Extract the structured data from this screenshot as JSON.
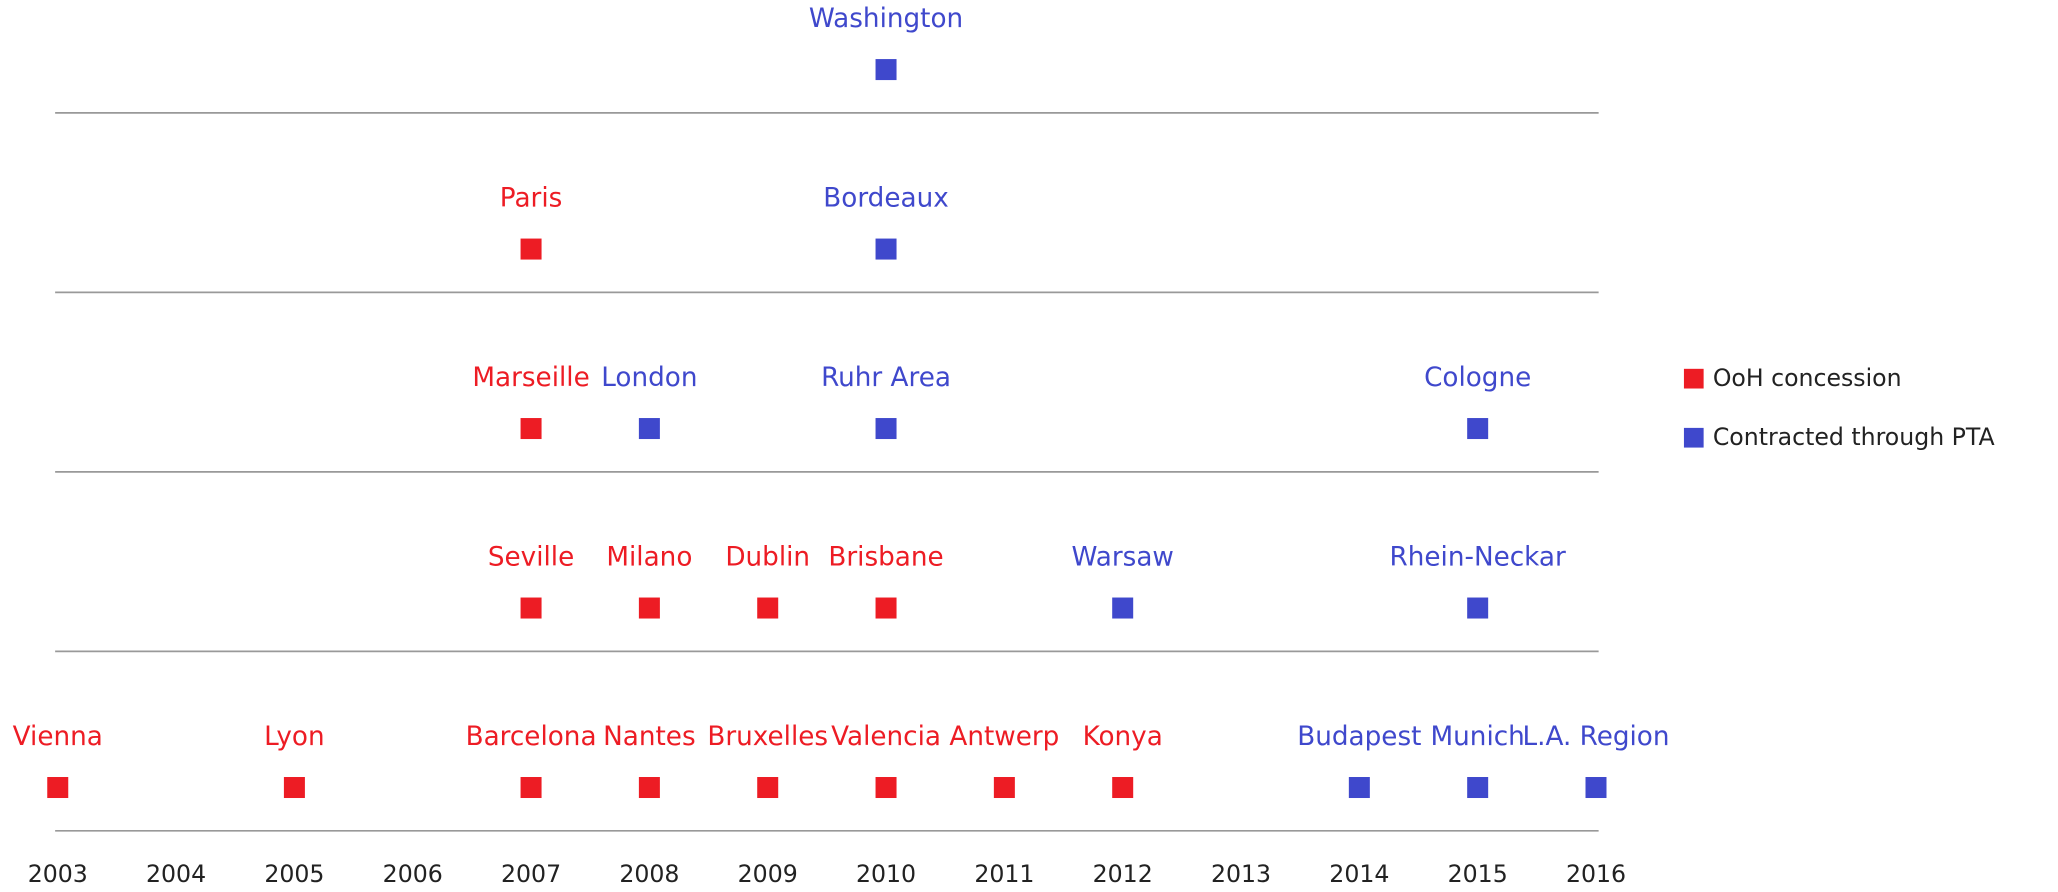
{
  "chart_data": {
    "type": "timeline",
    "xlim": [
      2003,
      2016
    ],
    "xticks": [
      2003,
      2004,
      2005,
      2006,
      2007,
      2008,
      2009,
      2010,
      2011,
      2012,
      2013,
      2014,
      2015,
      2016
    ],
    "legend": "right",
    "series": [
      {
        "name": "OoH concession",
        "color": "#ed1c24",
        "labels": [
          "Vienna",
          "Lyon",
          "Barcelona",
          "Nantes",
          "Bruxelles",
          "Valencia",
          "Antwerp",
          "Konya",
          "Seville",
          "Milano",
          "Dublin",
          "Brisbane",
          "Marseille",
          "Paris"
        ],
        "x": [
          2003,
          2005,
          2007,
          2008,
          2009,
          2010,
          2011,
          2012,
          2007,
          2008,
          2009,
          2010,
          2007,
          2007
        ]
      },
      {
        "name": "Contracted through PTA",
        "color": "#3f48cc",
        "labels": [
          "Budapest",
          "Munich",
          "L.A. Region",
          "Warsaw",
          "Rhein-Neckar",
          "London",
          "Ruhr Area",
          "Cologne",
          "Bordeaux",
          "Washington"
        ],
        "x": [
          2014,
          2015,
          2016,
          2012,
          2015,
          2008,
          2010,
          2015,
          2010,
          2010
        ]
      }
    ]
  }
}
